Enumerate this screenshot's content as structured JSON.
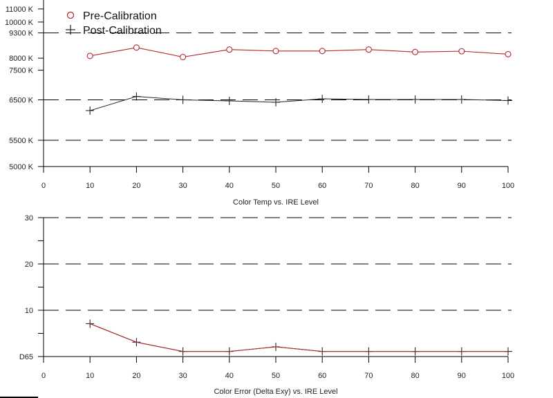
{
  "colors": {
    "pre_calibration": "#b5262a",
    "post_calibration": "#222222",
    "axis": "#000000",
    "grid_dash": "#000000"
  },
  "legend": {
    "items": [
      {
        "label": "Pre-Calibration",
        "marker": "circle"
      },
      {
        "label": "Post-Calibration",
        "marker": "plus"
      }
    ]
  },
  "chart_data": [
    {
      "type": "line",
      "xlabel": "Color Temp vs. IRE Level",
      "ylabel": "",
      "x": [
        10,
        20,
        30,
        40,
        50,
        60,
        70,
        80,
        90,
        100
      ],
      "xlim": [
        0,
        100
      ],
      "xticks": [
        0,
        10,
        20,
        30,
        40,
        50,
        60,
        70,
        80,
        90,
        100
      ],
      "yscale": "reciprocal",
      "ylim": [
        5000,
        11800
      ],
      "yticks": [
        {
          "value": 5000,
          "label": "5000 K"
        },
        {
          "value": 5500,
          "label": "5500 K"
        },
        {
          "value": 6500,
          "label": "6500 K"
        },
        {
          "value": 7500,
          "label": "7500 K"
        },
        {
          "value": 8000,
          "label": "8000 K"
        },
        {
          "value": 9300,
          "label": "9300 K"
        },
        {
          "value": 10000,
          "label": "10000 K"
        },
        {
          "value": 11000,
          "label": "11000 K"
        }
      ],
      "dashed_lines": [
        5500,
        6500,
        9300
      ],
      "series": [
        {
          "name": "Pre-Calibration",
          "marker": "circle",
          "values": [
            8100,
            8500,
            8050,
            8400,
            8330,
            8330,
            8400,
            8280,
            8320,
            8180
          ]
        },
        {
          "name": "Post-Calibration",
          "marker": "plus",
          "values": [
            6200,
            6600,
            6500,
            6470,
            6430,
            6530,
            6510,
            6510,
            6510,
            6480
          ]
        }
      ]
    },
    {
      "type": "line",
      "xlabel": "Color Error (Delta Exy) vs. IRE Level",
      "ylabel": "",
      "x": [
        10,
        20,
        30,
        40,
        50,
        60,
        70,
        80,
        90,
        100
      ],
      "xlim": [
        0,
        100
      ],
      "xticks": [
        0,
        10,
        20,
        30,
        40,
        50,
        60,
        70,
        80,
        90,
        100
      ],
      "ylim": [
        0,
        30
      ],
      "yticks": [
        {
          "value": 0,
          "label": "D65"
        },
        {
          "value": 10,
          "label": "10"
        },
        {
          "value": 20,
          "label": "20"
        },
        {
          "value": 30,
          "label": "30"
        }
      ],
      "minor_yticks": [
        5,
        15,
        25
      ],
      "dashed_lines": [
        10,
        20,
        30
      ],
      "series": [
        {
          "name": "Pre-Calibration",
          "marker": "circle",
          "values": [
            7.1,
            3.1,
            1.1,
            1.1,
            2.1,
            1.1,
            1.1,
            1.1,
            1.1,
            1.1
          ]
        },
        {
          "name": "Post-Calibration",
          "marker": "plus",
          "values": [
            7.1,
            3.1,
            1.1,
            1.1,
            2.1,
            1.1,
            1.1,
            1.1,
            1.1,
            1.1
          ]
        }
      ]
    }
  ]
}
